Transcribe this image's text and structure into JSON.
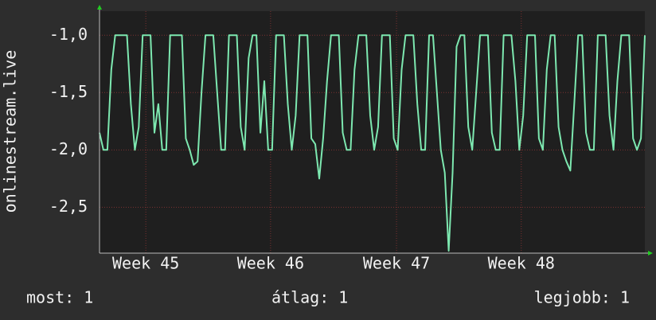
{
  "chart_data": {
    "type": "line",
    "y_label": "onlinestream.live",
    "color": "#7de8b0",
    "grid": true,
    "ylim": [
      -2.9,
      -0.79
    ],
    "yticks": [
      {
        "value": -1.0,
        "label": "-1,0"
      },
      {
        "value": -1.5,
        "label": "-1,5"
      },
      {
        "value": -2.0,
        "label": "-2,0"
      },
      {
        "value": -2.5,
        "label": "-2,5"
      }
    ],
    "xlim": [
      0,
      139
    ],
    "xticks": [
      {
        "value": 11.8,
        "label": "Week 45"
      },
      {
        "value": 43.6,
        "label": "Week 46"
      },
      {
        "value": 75.7,
        "label": "Week 47"
      },
      {
        "value": 107.5,
        "label": "Week 48"
      }
    ],
    "values": [
      -1.85,
      -2,
      -2,
      -1.3,
      -1,
      -1,
      -1,
      -1,
      -1.6,
      -2,
      -1.8,
      -1,
      -1,
      -1,
      -1.85,
      -1.6,
      -2,
      -2,
      -1,
      -1,
      -1,
      -1,
      -1.9,
      -2,
      -2.13,
      -2.1,
      -1.5,
      -1,
      -1,
      -1,
      -1.5,
      -2,
      -2,
      -1,
      -1,
      -1,
      -1.8,
      -2,
      -1.2,
      -1,
      -1,
      -1.85,
      -1.4,
      -2,
      -2,
      -1,
      -1,
      -1,
      -1.6,
      -2,
      -1.7,
      -1,
      -1,
      -1,
      -1.9,
      -1.95,
      -2.25,
      -1.9,
      -1.4,
      -1,
      -1,
      -1,
      -1.85,
      -2,
      -2,
      -1.3,
      -1,
      -1,
      -1,
      -1.7,
      -2,
      -1.8,
      -1,
      -1,
      -1,
      -1.9,
      -2,
      -1.3,
      -1,
      -1,
      -1,
      -1.6,
      -2,
      -2,
      -1,
      -1,
      -1.5,
      -2,
      -2.2,
      -2.88,
      -2.2,
      -1.1,
      -1,
      -1,
      -1.8,
      -2,
      -1.5,
      -1,
      -1,
      -1,
      -1.85,
      -2,
      -2,
      -1,
      -1,
      -1,
      -1.4,
      -2,
      -1.7,
      -1,
      -1,
      -1,
      -1.9,
      -2,
      -1.3,
      -1,
      -1,
      -1.8,
      -2,
      -2.1,
      -2.18,
      -1.6,
      -1,
      -1,
      -1.85,
      -2,
      -2,
      -1,
      -1,
      -1,
      -1.7,
      -2,
      -1.4,
      -1,
      -1,
      -1,
      -1.9,
      -2,
      -1.9,
      -1
    ],
    "footer": {
      "current": "most: 1",
      "average": "átlag: 1",
      "best": "legjobb: 1"
    }
  }
}
